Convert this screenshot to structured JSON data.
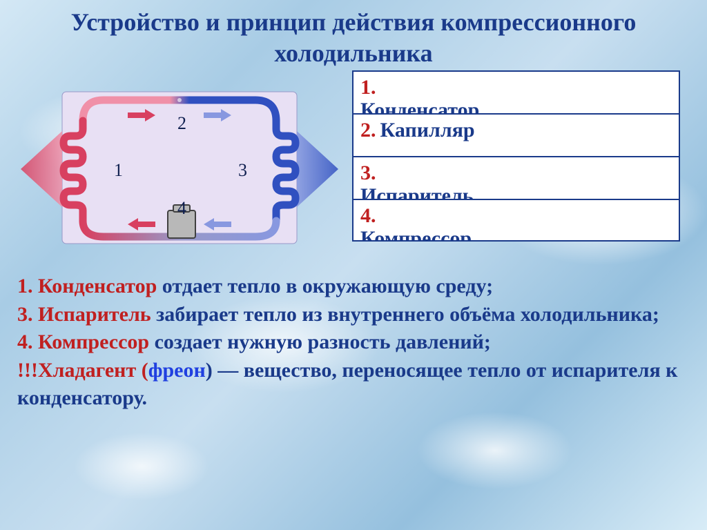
{
  "colors": {
    "title": "#1a3a8a",
    "legend_border": "#1a3a8a",
    "legend_num": "#c02020",
    "legend_label": "#1a3a8a",
    "body_text": "#1a3a8a",
    "term": "#c02020",
    "link": "#2040e0",
    "hot": "#d84060",
    "hot_light": "#f090a8",
    "cold": "#3050c0",
    "cold_light": "#8898e0",
    "mid": "#9898c8",
    "number": "#102050",
    "compressor_fill": "#b8b8b8",
    "compressor_stroke": "#404040",
    "diagram_bg": "#e8e0f4"
  },
  "title": "Устройство и принцип действия компрессионного холодильника",
  "legend": {
    "font_size": 30,
    "items": [
      {
        "num": "1.",
        "label": "Конденсатор",
        "layout": "multi"
      },
      {
        "num": "2.",
        "label": "Капилляр",
        "layout": "single"
      },
      {
        "num": "3.",
        "label": "Испаритель",
        "layout": "multi"
      },
      {
        "num": "4.",
        "label": "Компрессор",
        "layout": "multi",
        "num_display": "4."
      }
    ]
  },
  "diagram": {
    "numbers": {
      "1": "1",
      "2": "2",
      "3": "3",
      "4": "4"
    },
    "number_fontsize": 26
  },
  "body": {
    "lines": [
      {
        "parts": [
          {
            "t": "1. Конденсатор",
            "c": "term"
          },
          {
            "t": " отдает тепло в окружающую среду;",
            "c": "plain"
          }
        ]
      },
      {
        "parts": [
          {
            "t": "3. Испаритель",
            "c": "term"
          },
          {
            "t": " забирает тепло из внутреннего объёма холодильника;",
            "c": "plain"
          }
        ]
      },
      {
        "parts": [
          {
            "t": "4. Компрессор",
            "c": "term"
          },
          {
            "t": " создает нужную разность давлений;",
            "c": "plain"
          }
        ]
      },
      {
        "parts": [
          {
            "t": "!!!Хладагент (",
            "c": "term"
          },
          {
            "t": "фреон",
            "c": "link"
          },
          {
            "t": ") — вещество, переносящее тепло от испарителя к конденсатору.",
            "c": "plain"
          }
        ]
      }
    ]
  }
}
